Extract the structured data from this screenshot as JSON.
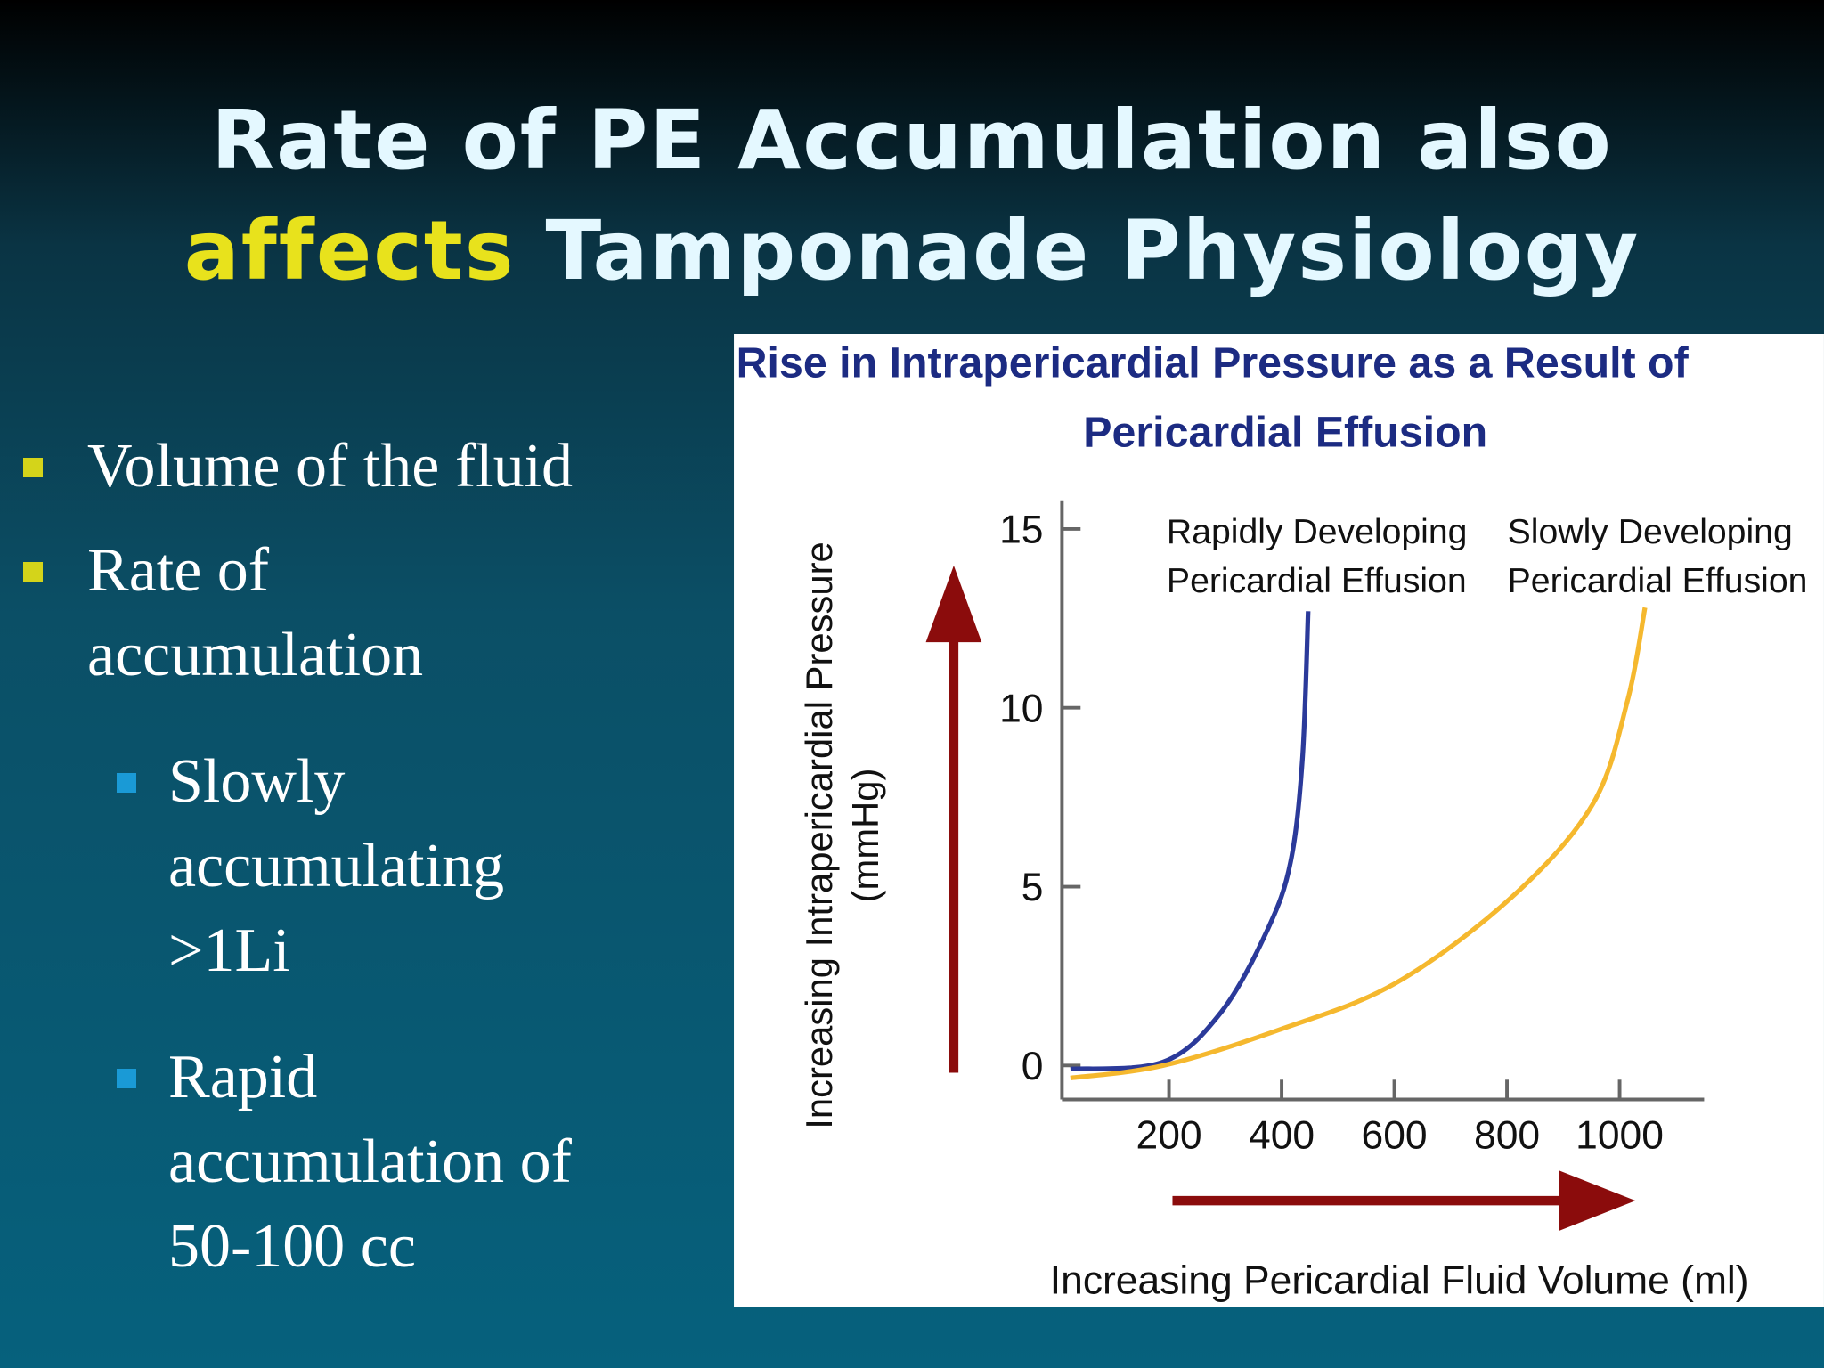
{
  "slide": {
    "title": {
      "line1": "Rate of PE Accumulation also",
      "highlight": "affects",
      "rest": "Tamponade Physiology"
    },
    "bullets": [
      {
        "level": 1,
        "lines": [
          "Volume of the fluid"
        ]
      },
      {
        "level": 1,
        "lines": [
          "Rate of",
          "accumulation"
        ]
      },
      {
        "level": 2,
        "lines": [
          "Slowly",
          "accumulating",
          ">1Li"
        ]
      },
      {
        "level": 2,
        "lines": [
          "Rapid",
          "accumulation of",
          "50-100 cc"
        ]
      }
    ]
  },
  "chart_data": {
    "type": "line",
    "title": [
      "Rise in Intrapericardial Pressure as a Result of",
      "Pericardial Effusion"
    ],
    "y_label": [
      "Increasing Intrapericardial Pressure",
      "(mmHg)"
    ],
    "x_label": "Increasing Pericardial Fluid Volume (ml)",
    "xlim": [
      10,
      1150
    ],
    "ylim": [
      -0.95,
      15.8
    ],
    "xticks": [
      200,
      400,
      600,
      800,
      1000
    ],
    "yticks": [
      0,
      5,
      10,
      15
    ],
    "series": [
      {
        "name": "Rapidly Developing\nPericardial Effusion",
        "color": "#2b3a9a",
        "x": [
          25,
          190,
          293,
          375,
          416,
          437,
          447
        ],
        "values": [
          -0.1,
          0.1,
          1.5,
          3.8,
          5.7,
          8.6,
          12.7
        ]
      },
      {
        "name": "Slowly Developing\nPericardial Effusion",
        "color": "#f5b82e",
        "x": [
          25,
          190,
          396,
          602,
          808,
          952,
          1014,
          1045
        ],
        "values": [
          -0.35,
          0,
          1,
          2.3,
          4.7,
          7.3,
          10.2,
          12.8
        ]
      }
    ]
  }
}
